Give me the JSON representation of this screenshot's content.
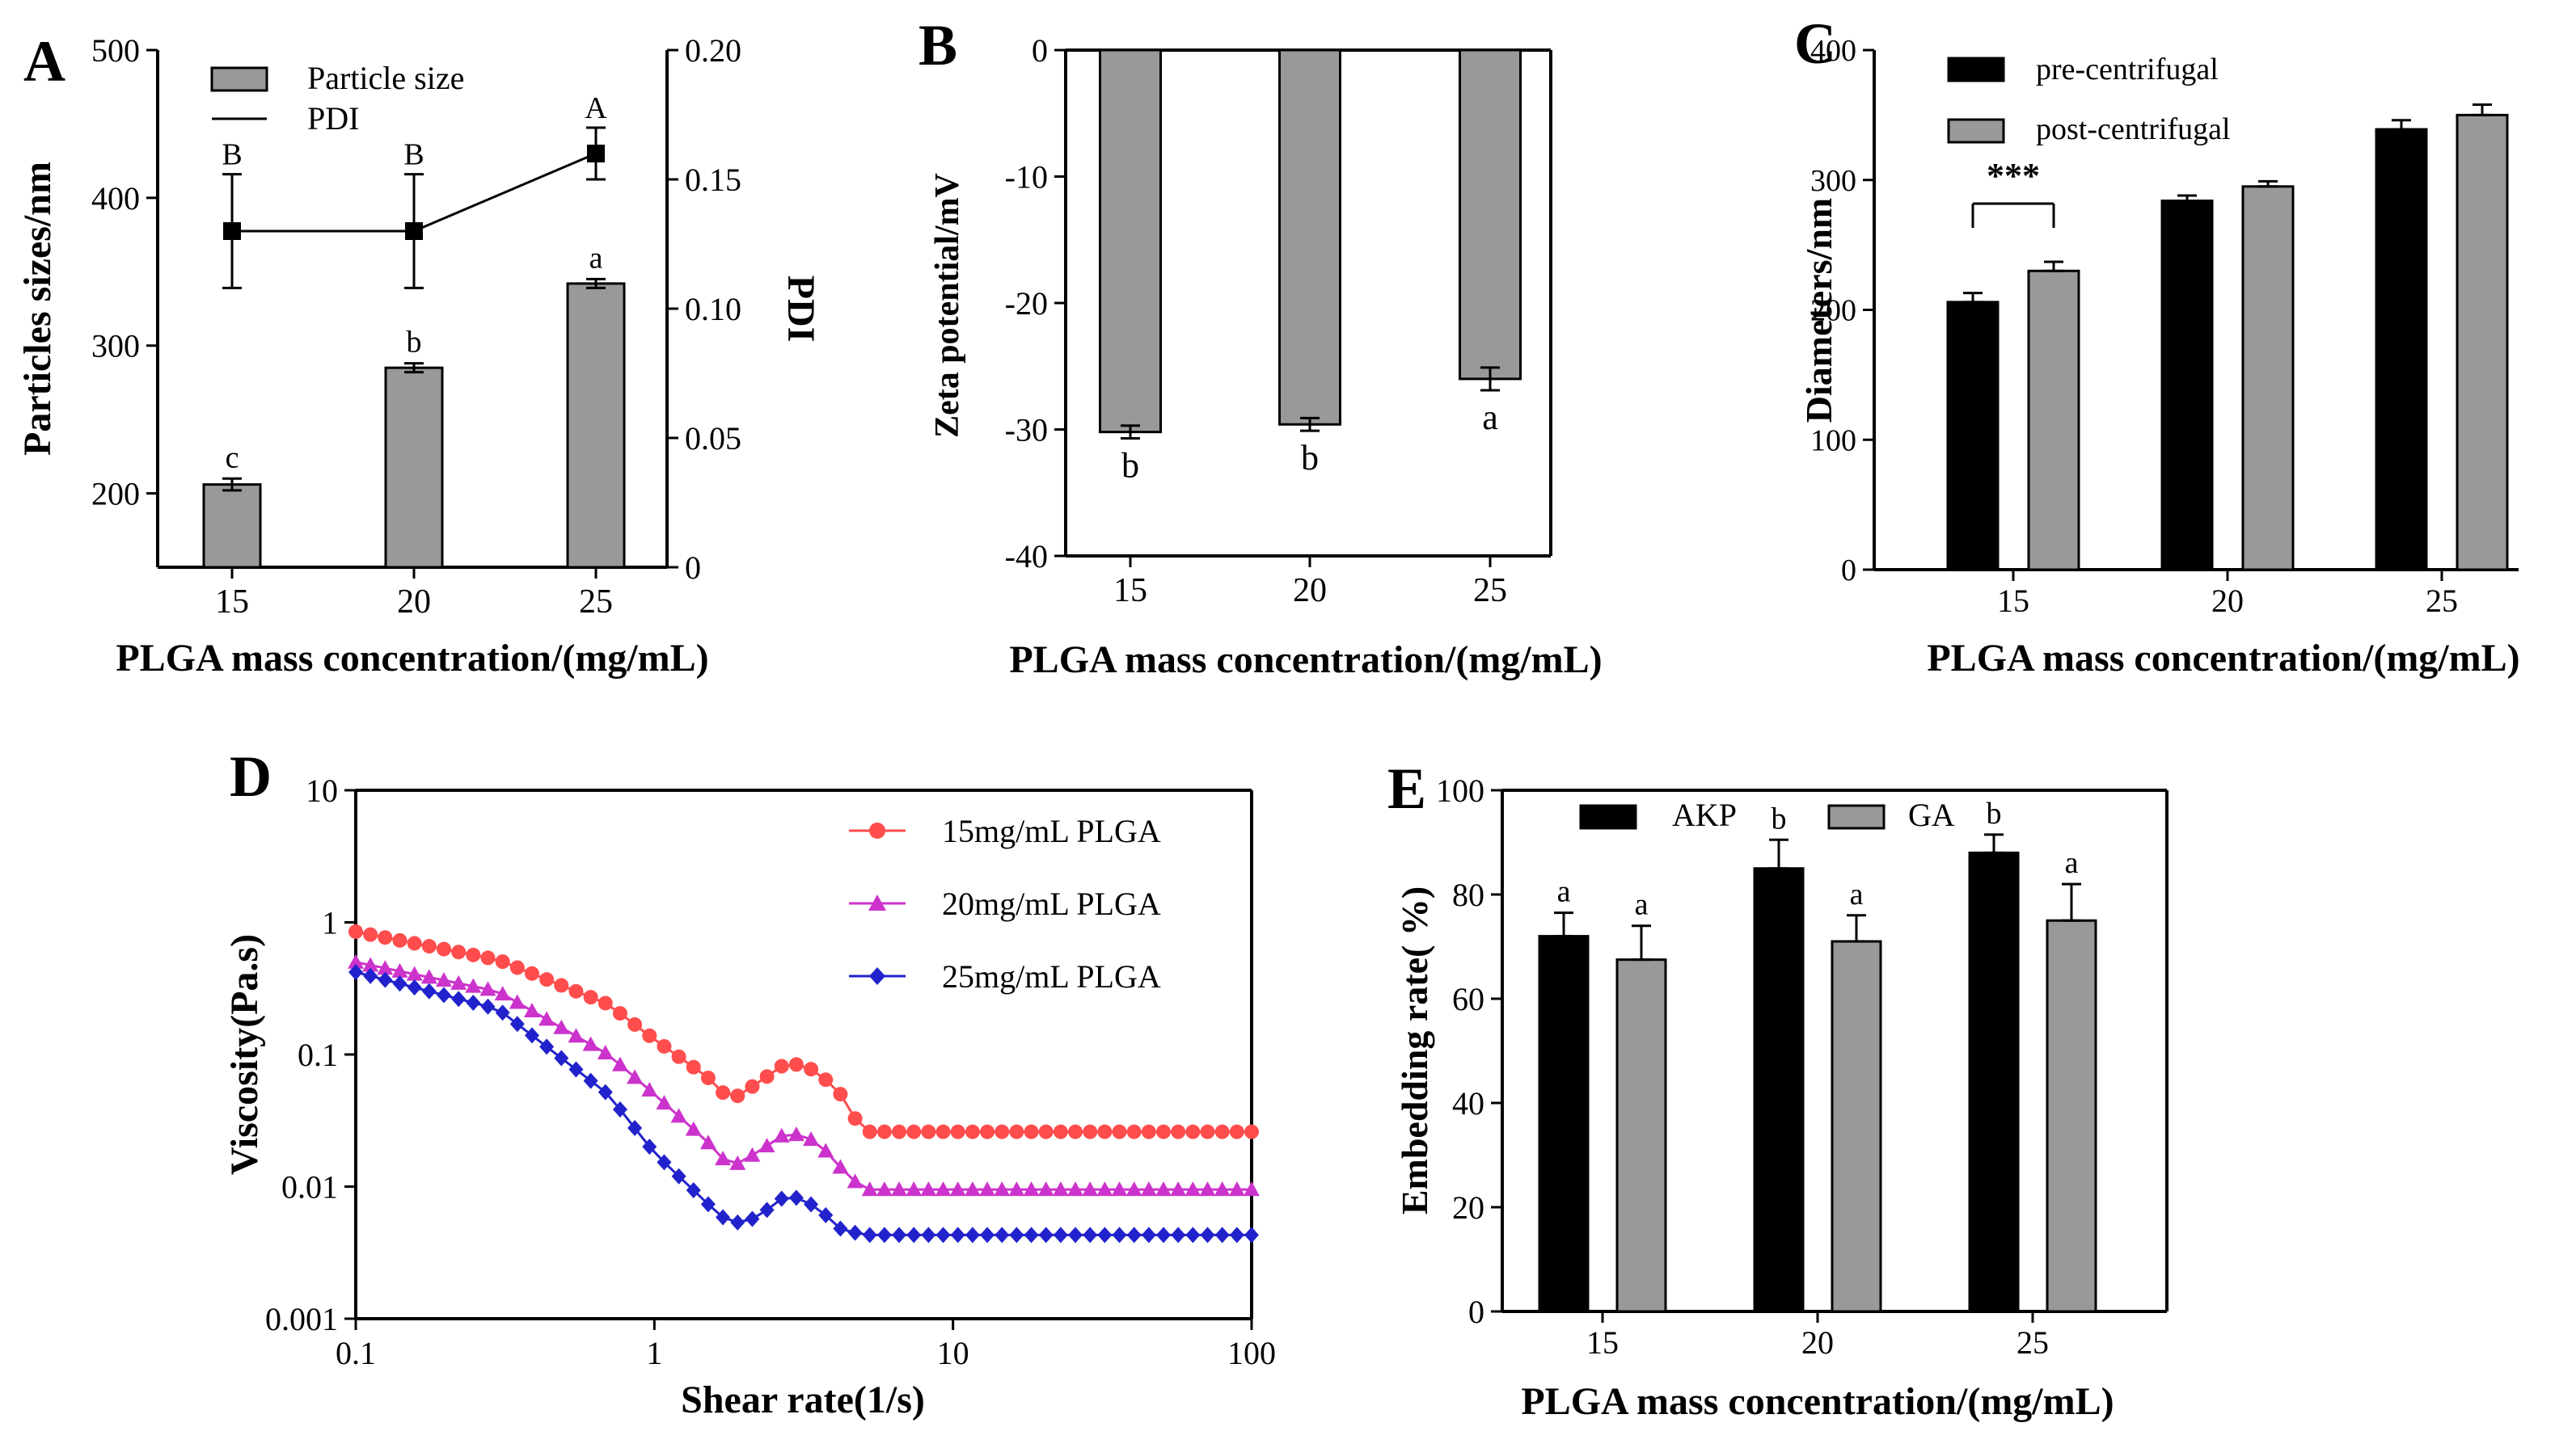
{
  "chart_data": [
    {
      "panel": "A",
      "type": "bar",
      "xlabel": "PLGA mass concentration/(mg/mL)",
      "ylabel": "Particles sizes/nm",
      "y2label": "PDI",
      "categories": [
        "15",
        "20",
        "25"
      ],
      "ylim": [
        150,
        500
      ],
      "yticks": [
        "200",
        "300",
        "400",
        "500"
      ],
      "y2lim": [
        0,
        0.2
      ],
      "y2ticks": [
        "0",
        "0.05",
        "0.10",
        "0.15",
        "0.20"
      ],
      "series": [
        {
          "name": "Particle size",
          "kind": "bar",
          "color": "#999999",
          "values": [
            206,
            285,
            342
          ],
          "errors": [
            4,
            3,
            3
          ],
          "labels": [
            "c",
            "b",
            "a"
          ]
        },
        {
          "name": "PDI",
          "kind": "line",
          "axis": "right",
          "color": "#000000",
          "values": [
            0.13,
            0.13,
            0.16
          ],
          "errors": [
            0.022,
            0.022,
            0.01
          ],
          "labels": [
            "B",
            "B",
            "A"
          ]
        }
      ],
      "legend": [
        "Particle size",
        "PDI"
      ]
    },
    {
      "panel": "B",
      "type": "bar",
      "xlabel": "PLGA mass concentration/(mg/mL)",
      "ylabel": "Zeta potential/mV",
      "categories": [
        "15",
        "20",
        "25"
      ],
      "ylim": [
        -40,
        0
      ],
      "yticks": [
        "0",
        "-10",
        "-20",
        "-30",
        "-40"
      ],
      "series": [
        {
          "name": "Zeta potential",
          "kind": "bar",
          "color": "#999999",
          "values": [
            -30.2,
            -29.6,
            -26.0
          ],
          "errors": [
            0.5,
            0.5,
            0.9
          ],
          "labels": [
            "b",
            "b",
            "a"
          ]
        }
      ]
    },
    {
      "panel": "C",
      "type": "bar",
      "xlabel": "PLGA mass concentration/(mg/mL)",
      "ylabel": "Diameters/nm",
      "categories": [
        "15",
        "20",
        "25"
      ],
      "ylim": [
        0,
        400
      ],
      "yticks": [
        "0",
        "100",
        "200",
        "300",
        "400"
      ],
      "series": [
        {
          "name": "pre-centrifugal",
          "kind": "bar",
          "color": "#000000",
          "values": [
            206,
            284,
            339
          ],
          "errors": [
            7,
            4,
            7
          ]
        },
        {
          "name": "post-centrifugal",
          "kind": "bar",
          "color": "#999999",
          "values": [
            230,
            295,
            350
          ],
          "errors": [
            7,
            4,
            8
          ]
        }
      ],
      "significance": "***"
    },
    {
      "panel": "D",
      "type": "line",
      "xscale": "log",
      "yscale": "log",
      "xlabel": "Shear rate(1/s)",
      "ylabel": "Viscosity(Pa.s)",
      "xlim": [
        0.1,
        100
      ],
      "ylim": [
        0.001,
        10
      ],
      "xticks": [
        "0.1",
        "1",
        "10",
        "100"
      ],
      "yticks": [
        "0.001",
        "0.01",
        "0.1",
        "1",
        "10"
      ],
      "x": [
        0.1,
        0.3,
        0.7,
        1.0,
        1.5,
        1.8,
        2.2,
        2.8,
        3.5,
        4.2,
        5.0,
        100
      ],
      "series": [
        {
          "name": "15mg/mL PLGA",
          "color": "#ff4d4d",
          "marker": "circle",
          "values": [
            0.85,
            0.52,
            0.24,
            0.13,
            0.068,
            0.045,
            0.06,
            0.088,
            0.075,
            0.05,
            0.026,
            0.026
          ]
        },
        {
          "name": "20mg/mL PLGA",
          "color": "#cc33cc",
          "marker": "triangle",
          "values": [
            0.5,
            0.3,
            0.1,
            0.05,
            0.022,
            0.014,
            0.018,
            0.026,
            0.022,
            0.014,
            0.0095,
            0.0095
          ]
        },
        {
          "name": "25mg/mL PLGA",
          "color": "#2222cc",
          "marker": "diamond",
          "values": [
            0.42,
            0.22,
            0.05,
            0.018,
            0.0075,
            0.0052,
            0.0058,
            0.0088,
            0.007,
            0.0048,
            0.0043,
            0.0043
          ]
        }
      ]
    },
    {
      "panel": "E",
      "type": "bar",
      "xlabel": "PLGA mass concentration/(mg/mL)",
      "ylabel": "Embedding rate( %)",
      "categories": [
        "15",
        "20",
        "25"
      ],
      "ylim": [
        0,
        100
      ],
      "yticks": [
        "0",
        "20",
        "40",
        "60",
        "80",
        "100"
      ],
      "series": [
        {
          "name": "AKP",
          "kind": "bar",
          "color": "#000000",
          "values": [
            72,
            85,
            88
          ],
          "errors": [
            4.5,
            5.5,
            3.5
          ],
          "labels": [
            "a",
            "b",
            "b"
          ]
        },
        {
          "name": "GA",
          "kind": "bar",
          "color": "#999999",
          "values": [
            67.5,
            71,
            75
          ],
          "errors": [
            6.5,
            5,
            7
          ],
          "labels": [
            "a",
            "a",
            "a"
          ]
        }
      ]
    }
  ]
}
